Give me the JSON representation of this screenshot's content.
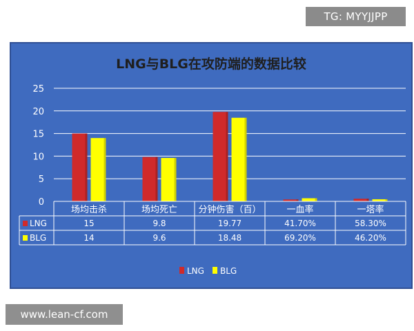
{
  "watermarks": {
    "top": "TG: MYYJJPP",
    "bottom": "www.lean-cf.com"
  },
  "colors": {
    "background": "#3f6bbf",
    "lng": "#d02a2a",
    "blg": "#ffff00",
    "grid": "#ffffff"
  },
  "chart_data": {
    "type": "bar",
    "title": "LNG与BLG在攻防端的数据比较",
    "xlabel": "",
    "ylabel": "",
    "ylim": [
      0,
      25
    ],
    "yticks": [
      "0",
      "5",
      "10",
      "15",
      "20",
      "25"
    ],
    "grid": true,
    "legend_position": "bottom",
    "categories": [
      "场均击杀",
      "场均死亡",
      "分钟伤害（百）",
      "一血率",
      "一塔率"
    ],
    "series": [
      {
        "name": "LNG",
        "values": [
          15,
          9.8,
          19.77,
          0.417,
          0.583
        ],
        "labels": [
          "15",
          "9.8",
          "19.77",
          "41.70%",
          "58.30%"
        ]
      },
      {
        "name": "BLG",
        "values": [
          14,
          9.6,
          18.48,
          0.692,
          0.462
        ],
        "labels": [
          "14",
          "9.6",
          "18.48",
          "69.20%",
          "46.20%"
        ]
      }
    ]
  }
}
